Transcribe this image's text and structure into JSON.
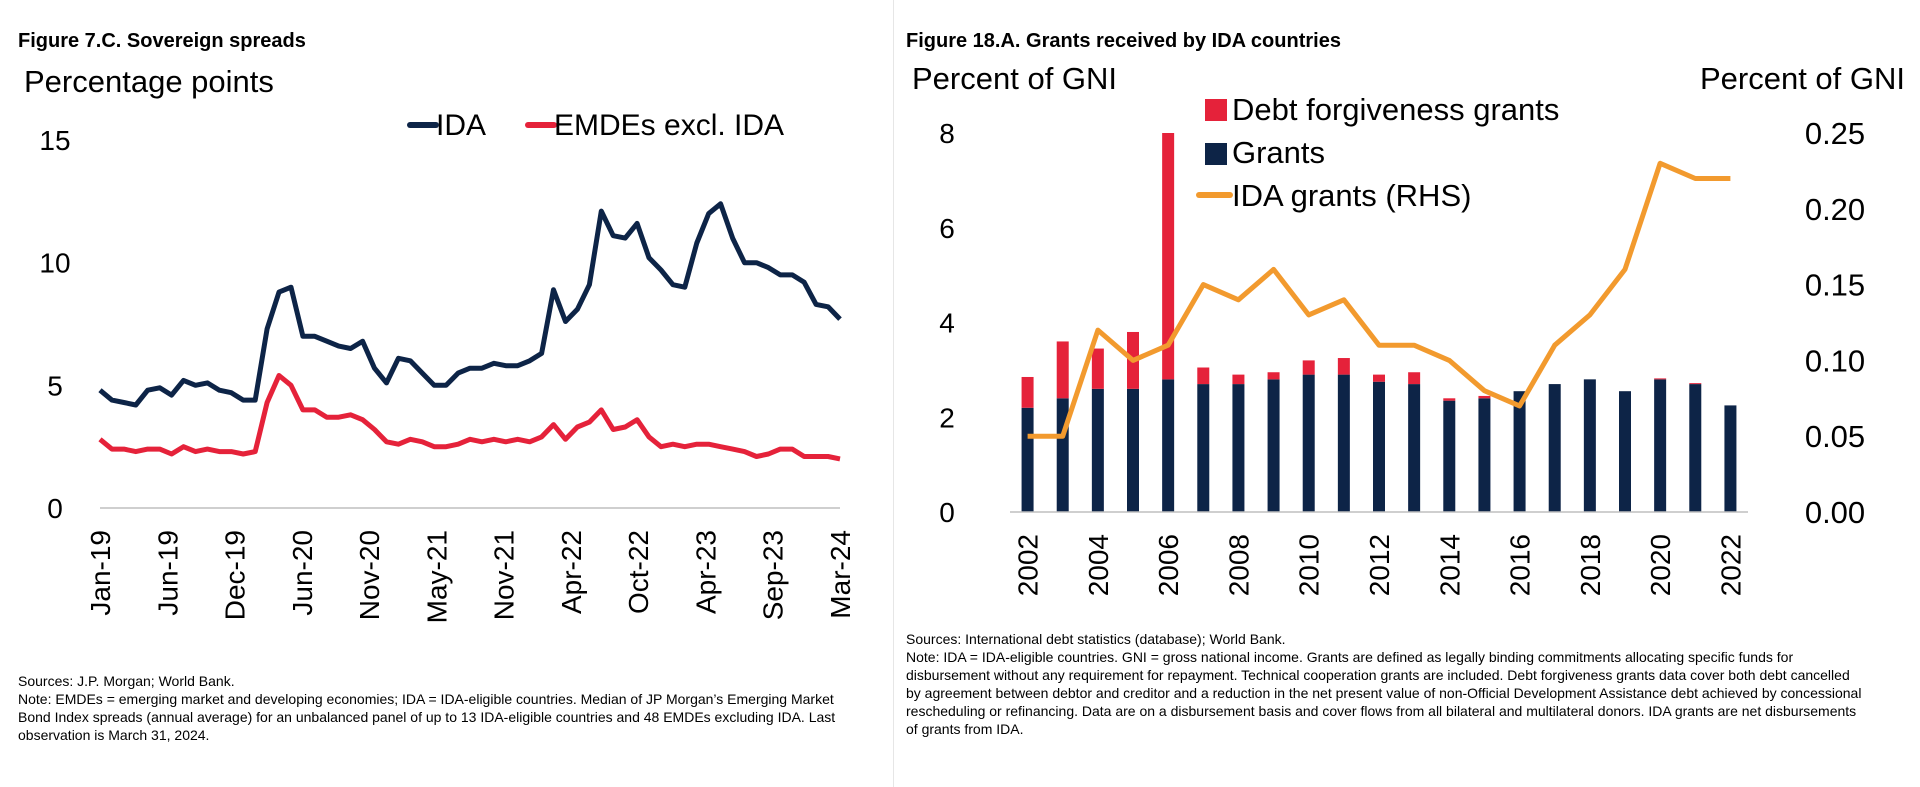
{
  "chart_data": [
    {
      "type": "line",
      "title": "Figure 7.C. Sovereign spreads",
      "ylabel": "Percentage points",
      "ylim": [
        0,
        15
      ],
      "yticks": [
        "0",
        "5",
        "10",
        "15"
      ],
      "xtick_labels": [
        "Jan-19",
        "Jun-19",
        "Dec-19",
        "Jun-20",
        "Nov-20",
        "May-21",
        "Nov-21",
        "Apr-22",
        "Oct-22",
        "Apr-23",
        "Sep-23",
        "Mar-24"
      ],
      "legend": "top-right",
      "colors": {
        "IDA": "#0d2447",
        "EMDEs excl. IDA": "#e5223a"
      },
      "series": [
        {
          "name": "IDA",
          "values": [
            4.8,
            4.4,
            4.3,
            4.2,
            4.8,
            4.9,
            4.6,
            5.2,
            5.0,
            5.1,
            4.8,
            4.7,
            4.4,
            4.4,
            7.3,
            8.8,
            9.0,
            7.0,
            7.0,
            6.8,
            6.6,
            6.5,
            6.8,
            5.7,
            5.1,
            6.1,
            6.0,
            5.5,
            5.0,
            5.0,
            5.5,
            5.7,
            5.7,
            5.9,
            5.8,
            5.8,
            6.0,
            6.3,
            8.9,
            7.6,
            8.1,
            9.1,
            12.1,
            11.1,
            11.0,
            11.6,
            10.2,
            9.7,
            9.1,
            9.0,
            10.8,
            12.0,
            12.4,
            11.0,
            10.0,
            10.0,
            9.8,
            9.5,
            9.5,
            9.2,
            8.3,
            8.2,
            7.7
          ]
        },
        {
          "name": "EMDEs excl. IDA",
          "values": [
            2.8,
            2.4,
            2.4,
            2.3,
            2.4,
            2.4,
            2.2,
            2.5,
            2.3,
            2.4,
            2.3,
            2.3,
            2.2,
            2.3,
            4.3,
            5.4,
            5.0,
            4.0,
            4.0,
            3.7,
            3.7,
            3.8,
            3.6,
            3.2,
            2.7,
            2.6,
            2.8,
            2.7,
            2.5,
            2.5,
            2.6,
            2.8,
            2.7,
            2.8,
            2.7,
            2.8,
            2.7,
            2.9,
            3.4,
            2.8,
            3.3,
            3.5,
            4.0,
            3.2,
            3.3,
            3.6,
            2.9,
            2.5,
            2.6,
            2.5,
            2.6,
            2.6,
            2.5,
            2.4,
            2.3,
            2.1,
            2.2,
            2.4,
            2.4,
            2.1,
            2.1,
            2.1,
            2.0
          ]
        }
      ]
    },
    {
      "type": "bar",
      "title": "Figure 18.A. Grants received by IDA countries",
      "ylabel": "Percent of GNI",
      "ylabel_right": "Percent of GNI",
      "ylim": [
        0,
        8
      ],
      "ylim_right": [
        0,
        0.25
      ],
      "yticks": [
        "0",
        "2",
        "4",
        "6",
        "8"
      ],
      "yticks_right": [
        "0.00",
        "0.05",
        "0.10",
        "0.15",
        "0.20",
        "0.25"
      ],
      "categories": [
        "2002",
        "2003",
        "2004",
        "2005",
        "2006",
        "2007",
        "2008",
        "2009",
        "2010",
        "2011",
        "2012",
        "2013",
        "2014",
        "2015",
        "2016",
        "2017",
        "2018",
        "2019",
        "2020",
        "2021",
        "2022"
      ],
      "xtick_labels": [
        "2002",
        "2004",
        "2006",
        "2008",
        "2010",
        "2012",
        "2014",
        "2016",
        "2018",
        "2020",
        "2022"
      ],
      "legend": "top-left",
      "colors": {
        "Debt forgiveness grants": "#e5223a",
        "Grants": "#0d2447",
        "IDA grants (RHS)": "#f29a2e"
      },
      "series": [
        {
          "name": "Grants",
          "values": [
            2.2,
            2.4,
            2.6,
            2.6,
            2.8,
            2.7,
            2.7,
            2.8,
            2.9,
            2.9,
            2.75,
            2.7,
            2.35,
            2.4,
            2.55,
            2.7,
            2.8,
            2.55,
            2.8,
            2.7,
            2.25
          ]
        },
        {
          "name": "Debt forgiveness grants",
          "values": [
            0.65,
            1.2,
            0.85,
            1.2,
            5.2,
            0.35,
            0.2,
            0.15,
            0.3,
            0.35,
            0.15,
            0.25,
            0.05,
            0.05,
            0.0,
            0.0,
            0.0,
            0.0,
            0.02,
            0.02,
            0.0
          ]
        },
        {
          "name": "IDA grants (RHS)",
          "axis": "right",
          "values": [
            0.05,
            0.05,
            0.12,
            0.1,
            0.11,
            0.15,
            0.14,
            0.16,
            0.13,
            0.14,
            0.11,
            0.11,
            0.1,
            0.08,
            0.07,
            0.11,
            0.13,
            0.16,
            0.23,
            0.22,
            0.22
          ]
        }
      ]
    }
  ],
  "left_notes": {
    "sources": "Sources: J.P. Morgan; World Bank.",
    "note": "Note:  EMDEs = emerging market and developing economies; IDA = IDA-eligible countries. Median of JP Morgan’s Emerging Market Bond Index spreads (annual average) for an unbalanced panel of up to 13 IDA-eligible countries and 48 EMDEs excluding IDA. Last observation is March 31, 2024."
  },
  "right_notes": {
    "sources": "Sources: International debt statistics (database); World Bank.",
    "note": "Note: IDA = IDA-eligible countries. GNI = gross national income. Grants are defined as legally binding commitments allocating specific funds for disbursement without any requirement for repayment. Technical cooperation grants are included. Debt forgiveness grants data cover both debt cancelled by agreement between debtor and creditor and a reduction in the net present value of non-Official Development Assistance debt achieved by concessional rescheduling or refinancing. Data are on a disbursement basis and cover flows from all bilateral and multilateral donors. IDA grants are net disbursements of grants from IDA."
  }
}
